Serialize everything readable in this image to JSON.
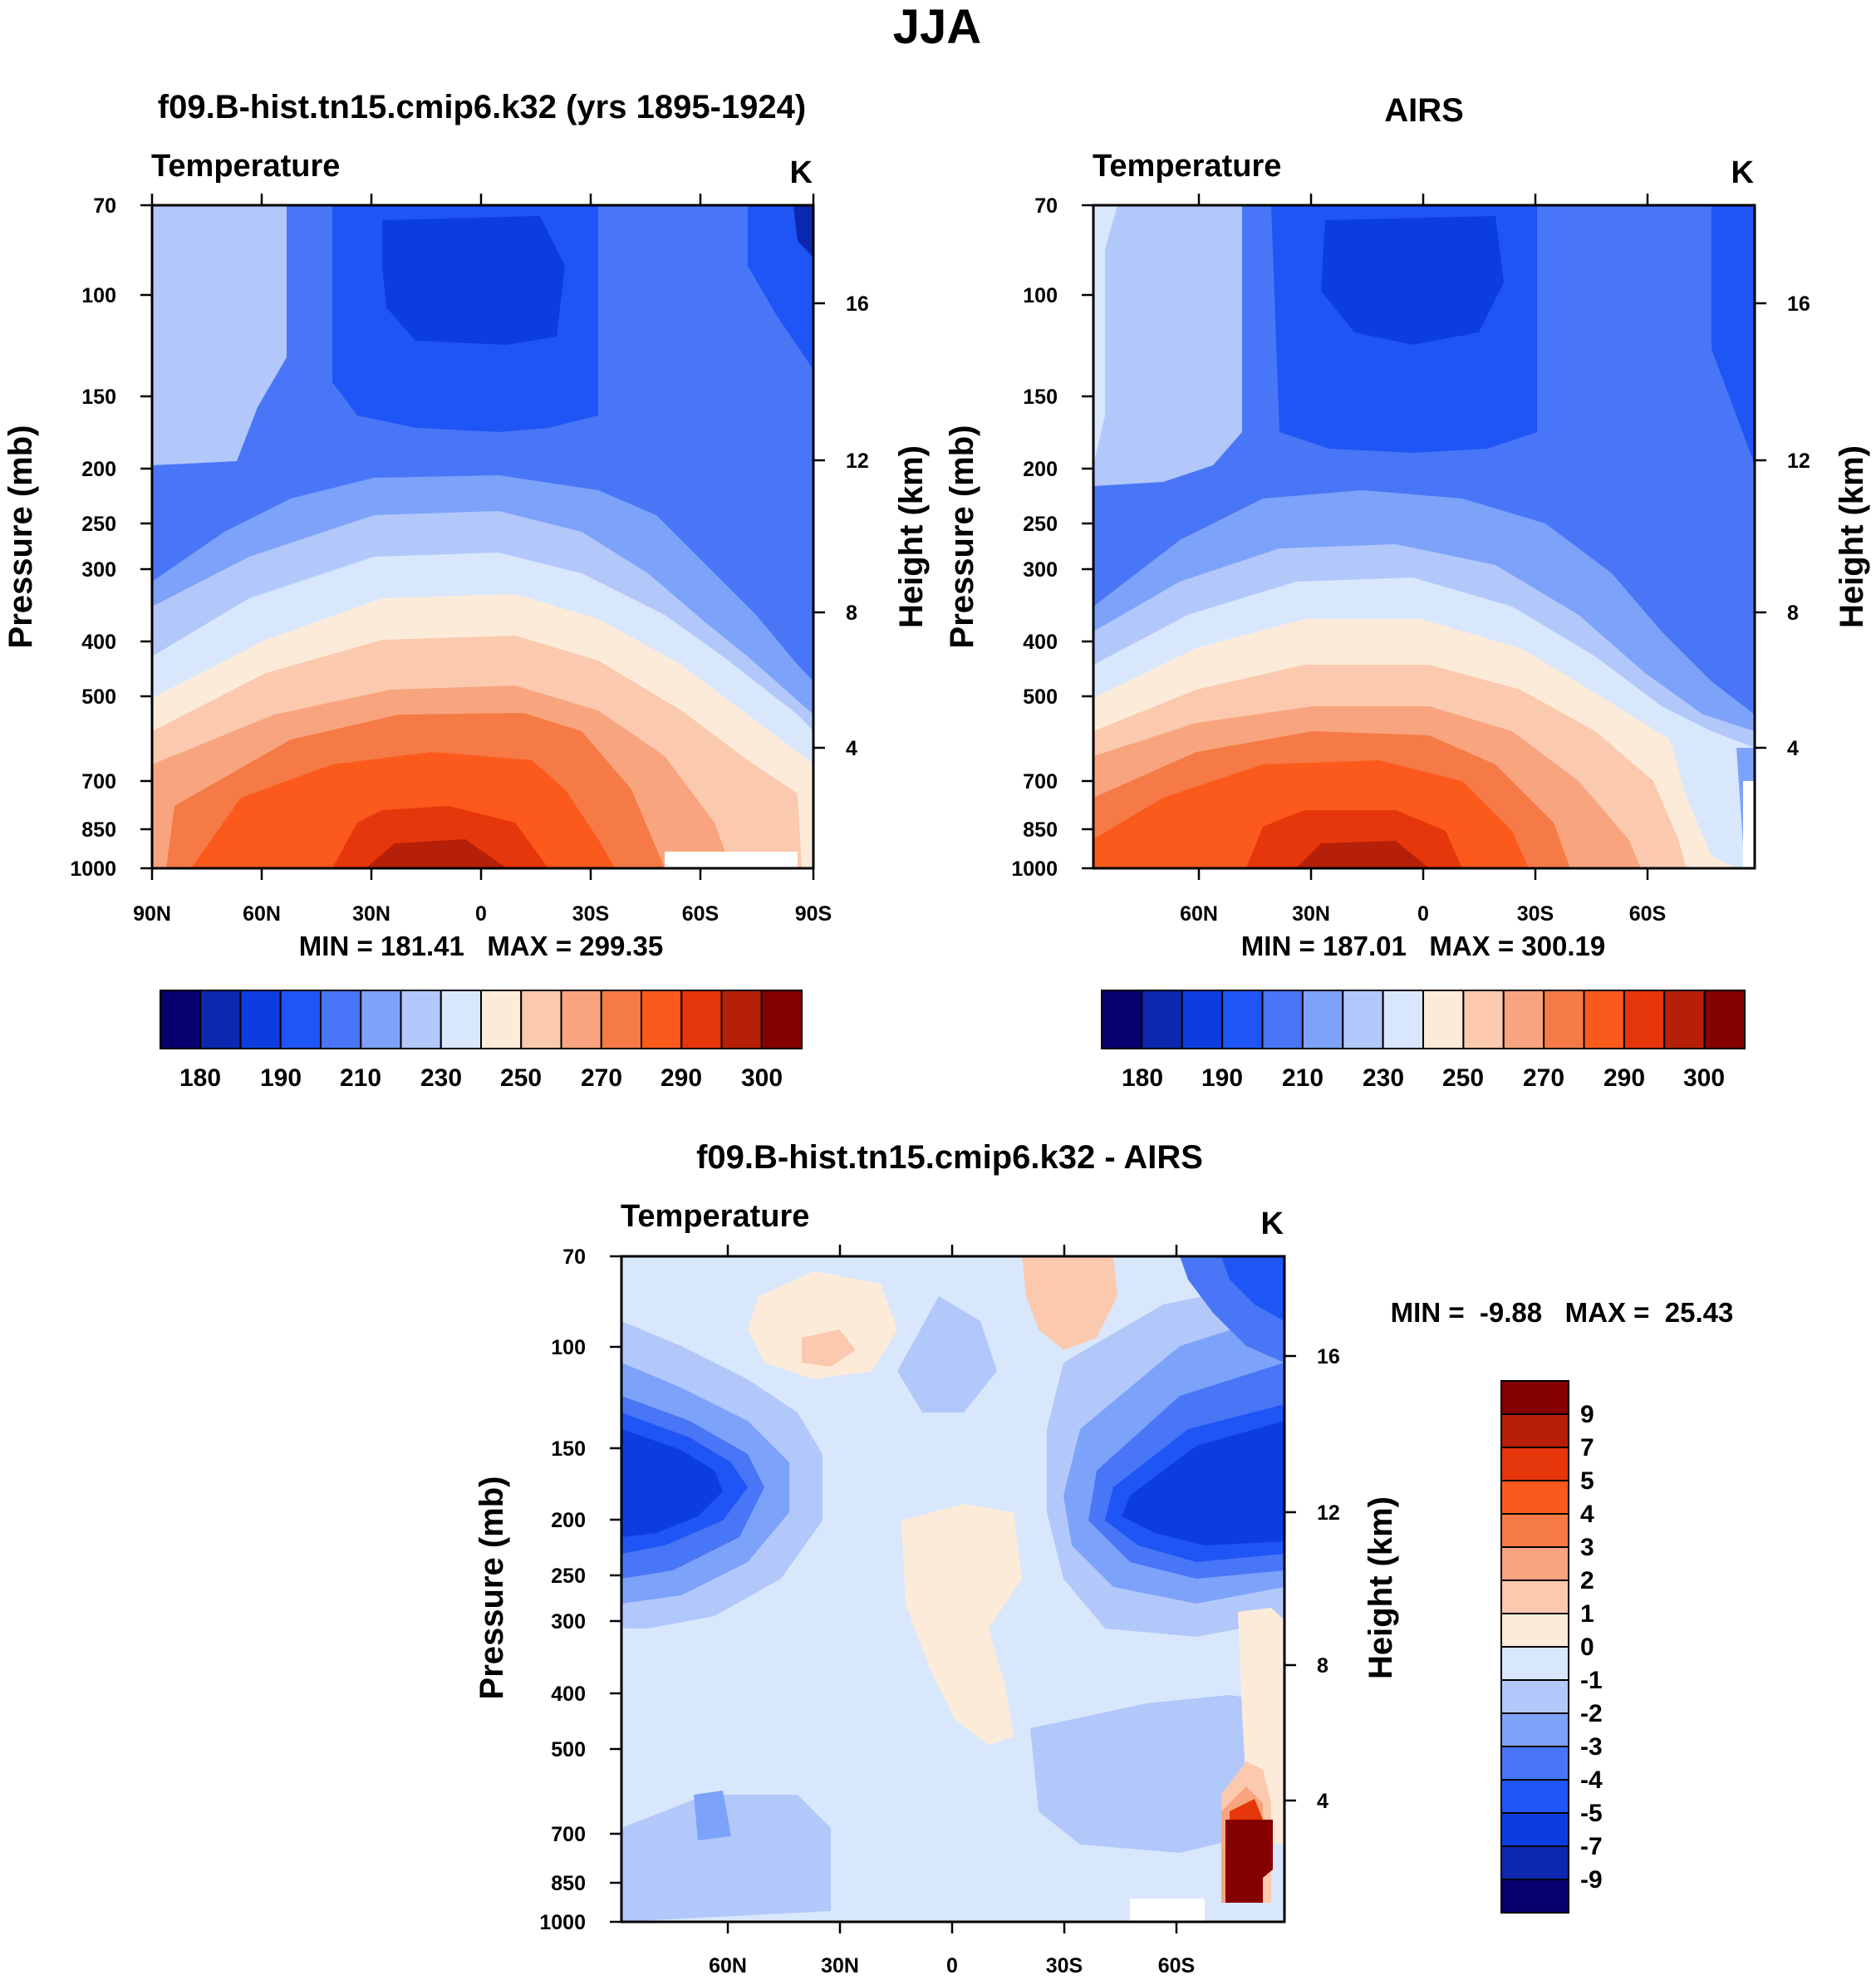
{
  "title": "JJA",
  "colors": {
    "temperature_levels": [
      "#08006e",
      "#0d28b0",
      "#0b3de0",
      "#1f55f5",
      "#4876f6",
      "#7da2f9",
      "#b2c8fb",
      "#d9e7fc",
      "#fdebd9",
      "#fbc9ae",
      "#f8a57f",
      "#f67a45",
      "#fb5a1c",
      "#e6360b",
      "#b62008",
      "#850000"
    ],
    "difference_levels": [
      "#08006e",
      "#0d28b0",
      "#0b3de0",
      "#1f55f5",
      "#4876f6",
      "#7da2f9",
      "#b2c8fb",
      "#d9e7fc",
      "#fdebd9",
      "#fbc9ae",
      "#f8a57f",
      "#f67a45",
      "#fb5a1c",
      "#e6360b",
      "#b62008",
      "#850000"
    ],
    "missing": "#ffffff"
  },
  "chart_data": [
    {
      "type": "heatmap",
      "id": "model",
      "title": "f09.B-hist.tn15.cmip6.k32 (yrs 1895-1924)",
      "variable": "Temperature",
      "units": "K",
      "ylabel": "Pressure (mb)",
      "ylabel_right": "Height (km)",
      "pressure_ticks": [
        "70",
        "100",
        "150",
        "200",
        "250",
        "300",
        "400",
        "500",
        "700",
        "850",
        "1000"
      ],
      "height_ticks": [
        "16",
        "12",
        "8",
        "4"
      ],
      "lat_ticks": [
        "90N",
        "60N",
        "30N",
        "0",
        "30S",
        "60S",
        "90S"
      ],
      "stats": "MIN = 181.41   MAX = 299.35",
      "colorbar_labels": [
        "180",
        "190",
        "210",
        "230",
        "250",
        "270",
        "290",
        "300"
      ]
    },
    {
      "type": "heatmap",
      "id": "obs",
      "title": "AIRS",
      "variable": "Temperature",
      "units": "K",
      "ylabel": "Pressure (mb)",
      "ylabel_right": "Height (km)",
      "pressure_ticks": [
        "70",
        "100",
        "150",
        "200",
        "250",
        "300",
        "400",
        "500",
        "700",
        "850",
        "1000"
      ],
      "height_ticks": [
        "16",
        "12",
        "8",
        "4"
      ],
      "lat_ticks": [
        "60N",
        "30N",
        "0",
        "30S",
        "60S"
      ],
      "stats": "MIN = 187.01   MAX = 300.19",
      "colorbar_labels": [
        "180",
        "190",
        "210",
        "230",
        "250",
        "270",
        "290",
        "300"
      ]
    },
    {
      "type": "heatmap",
      "id": "diff",
      "title": "f09.B-hist.tn15.cmip6.k32 - AIRS",
      "variable": "Temperature",
      "units": "K",
      "ylabel": "Pressure (mb)",
      "ylabel_right": "Height (km)",
      "pressure_ticks": [
        "70",
        "100",
        "150",
        "200",
        "250",
        "300",
        "400",
        "500",
        "700",
        "850",
        "1000"
      ],
      "height_ticks": [
        "16",
        "12",
        "8",
        "4"
      ],
      "lat_ticks": [
        "60N",
        "30N",
        "0",
        "30S",
        "60S"
      ],
      "stats": "MIN =  -9.88   MAX =  25.43",
      "colorbar_labels": [
        "9",
        "7",
        "5",
        "4",
        "3",
        "2",
        "1",
        "0",
        "-1",
        "-2",
        "-3",
        "-4",
        "-5",
        "-7",
        "-9"
      ]
    }
  ]
}
